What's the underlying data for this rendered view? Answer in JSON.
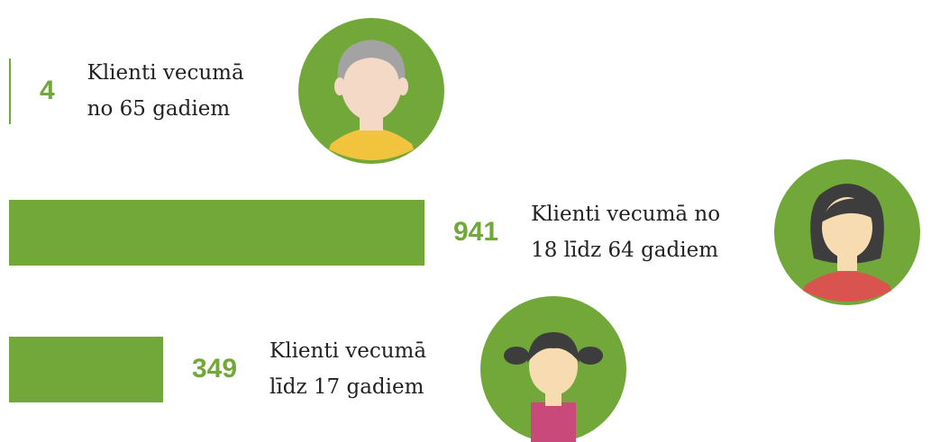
{
  "chart_data": {
    "type": "bar",
    "orientation": "horizontal",
    "categories": [
      "Klienti vecumā\nno 65 gadiem",
      "Klienti vecumā no\n18 līdz 64 gadiem",
      "Klienti vecumā\nlīdz 17 gadiem"
    ],
    "values": [
      4,
      941,
      349
    ],
    "color": "#72a83a"
  }
}
